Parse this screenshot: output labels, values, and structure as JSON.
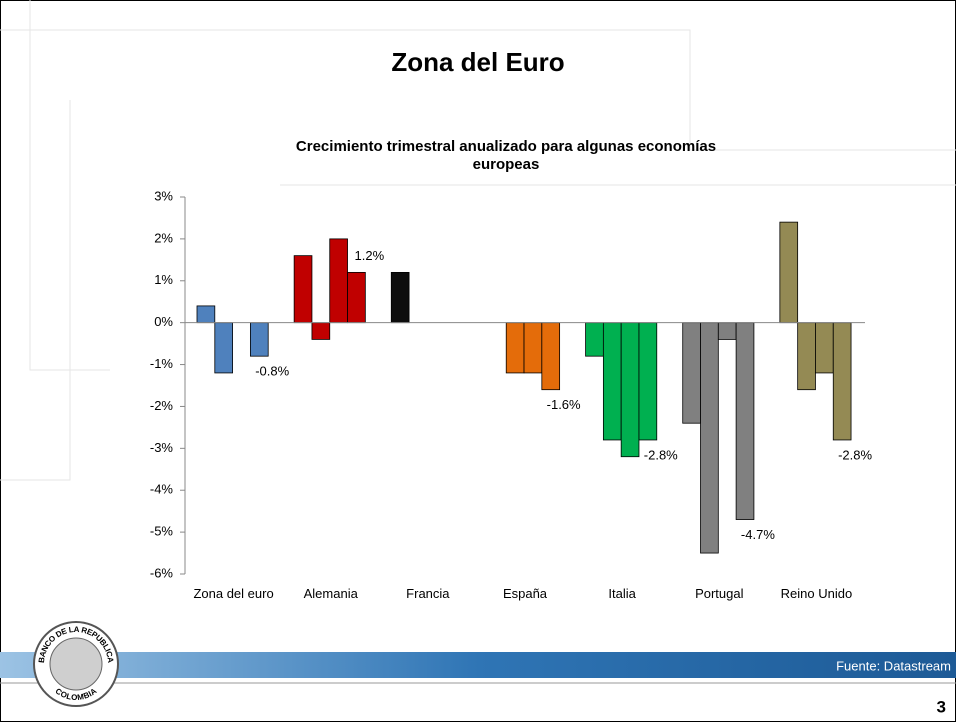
{
  "slide_title": "Zona del Euro",
  "source": "Fuente: Datastream",
  "page_number": "3",
  "logo": {
    "top": "BANCO DE LA REPUBLICA",
    "bottom": "COLOMBIA"
  },
  "chart_data": {
    "type": "grouped-bar",
    "title_lines": [
      "Crecimiento trimestral anualizado para algunas economías",
      "europeas"
    ],
    "categories": [
      "Zona del euro",
      "Alemania",
      "Francia",
      "España",
      "Italia",
      "Portugal",
      "Reino Unido"
    ],
    "colors": [
      "#4f81bd",
      "#c00000",
      "#0d0d0d",
      "#e46c0a",
      "#00b050",
      "#808080",
      "#948a54"
    ],
    "values": [
      [
        0.4,
        -1.2,
        null,
        -0.8
      ],
      [
        1.6,
        -0.4,
        2.0,
        1.2
      ],
      [
        1.2,
        null,
        null,
        null
      ],
      [
        null,
        -1.2,
        -1.2,
        -1.6
      ],
      [
        -0.8,
        -2.8,
        -3.2,
        -2.8
      ],
      [
        -2.4,
        -5.5,
        -0.4,
        -4.7
      ],
      [
        2.4,
        -1.6,
        -1.2,
        -2.8
      ]
    ],
    "value_labels": [
      [
        null,
        null,
        null,
        "-0.8%"
      ],
      [
        null,
        null,
        null,
        "1.2%"
      ],
      [
        null,
        null,
        null,
        null
      ],
      [
        null,
        null,
        null,
        "-1.6%"
      ],
      [
        null,
        null,
        null,
        "-2.8%"
      ],
      [
        null,
        null,
        null,
        "-4.7%"
      ],
      [
        null,
        null,
        null,
        "-2.8%"
      ]
    ],
    "ylim": [
      -6,
      3
    ],
    "yticks": [
      {
        "value": 3,
        "label": "3%"
      },
      {
        "value": 2,
        "label": "2%"
      },
      {
        "value": 1,
        "label": "1%"
      },
      {
        "value": 0,
        "label": "0%"
      },
      {
        "value": -1,
        "label": "-1%"
      },
      {
        "value": -2,
        "label": "-2%"
      },
      {
        "value": -3,
        "label": "-3%"
      },
      {
        "value": -4,
        "label": "-4%"
      },
      {
        "value": -5,
        "label": "-5%"
      },
      {
        "value": -6,
        "label": "-6%"
      }
    ]
  }
}
